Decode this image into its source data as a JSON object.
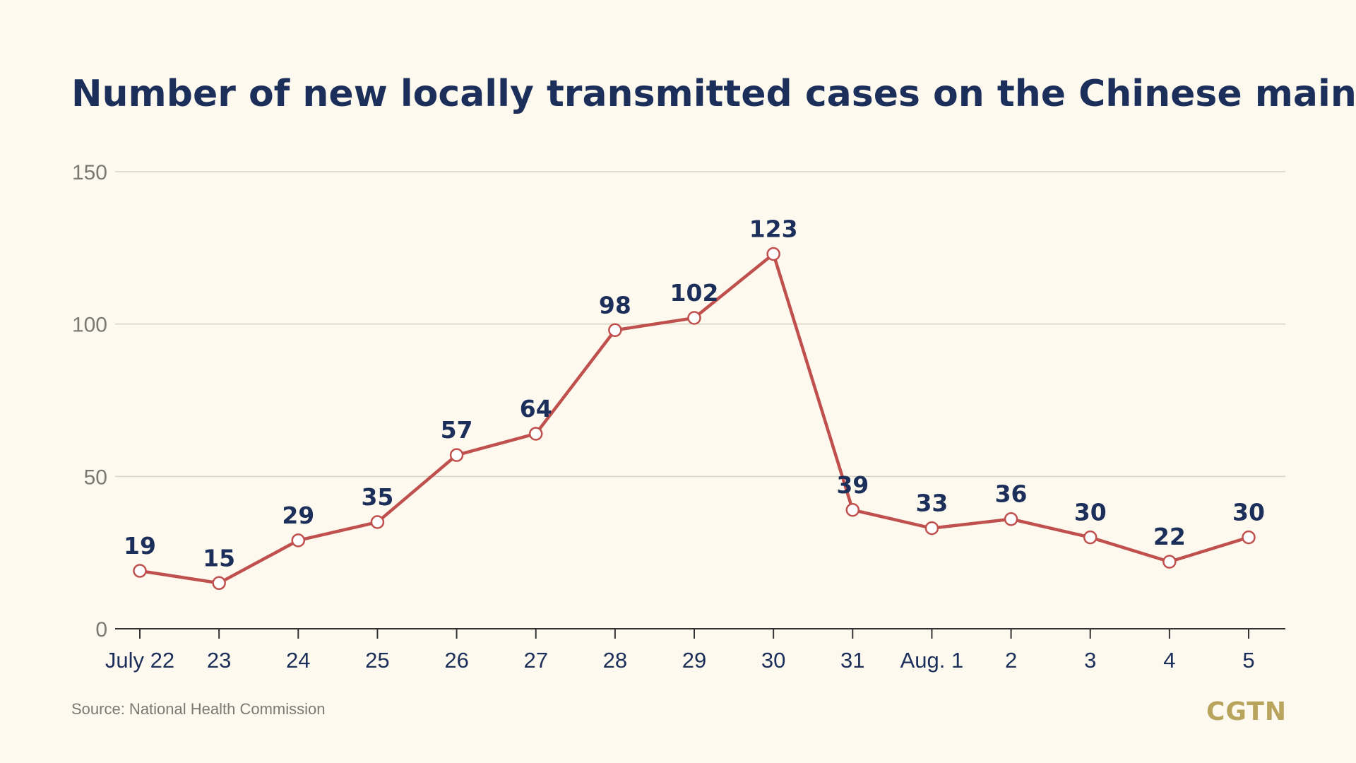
{
  "chart_data": {
    "type": "line",
    "title": "Number of new locally transmitted cases on the Chinese mainland",
    "categories": [
      "July 22",
      "23",
      "24",
      "25",
      "26",
      "27",
      "28",
      "29",
      "30",
      "31",
      "Aug. 1",
      "2",
      "3",
      "4",
      "5"
    ],
    "series": [
      {
        "values": [
          19,
          15,
          29,
          35,
          57,
          64,
          98,
          102,
          123,
          39,
          33,
          36,
          30,
          22,
          30
        ]
      }
    ],
    "ylim": [
      0,
      150
    ],
    "yticks": [
      0,
      50,
      100,
      150
    ],
    "grid": true,
    "colors": {
      "line": "#c0504d",
      "marker_fill": "#ffffff",
      "text": "#1b2f5a",
      "grid": "#d6d3c4",
      "axis": "#333333"
    }
  },
  "source": "Source: National Health Commission",
  "logo": "CGTN"
}
